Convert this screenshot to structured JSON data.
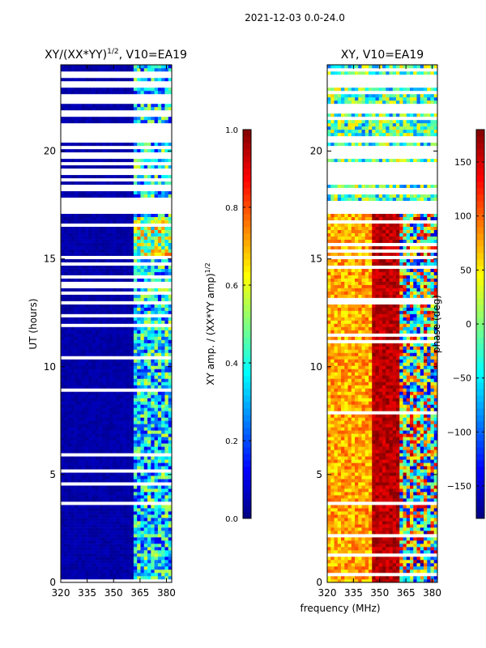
{
  "figure_title": "2021-12-03 0.0-24.0",
  "shared_xlabel": "frequency (MHz)",
  "colors": {
    "axis": "#000000",
    "background": "#ffffff",
    "flagged": "#ffffff"
  },
  "chart_data": [
    {
      "type": "heatmap",
      "title_main": "XY/(XX*YY)",
      "title_sup": "1/2",
      "title_tail": ", V10=EA19",
      "ylabel": "UT (hours)",
      "xlabel": "frequency (MHz)",
      "xlim": [
        320,
        383
      ],
      "ylim": [
        0,
        24
      ],
      "xticks": [
        320,
        335,
        350,
        365,
        380
      ],
      "yticks": [
        0,
        5,
        10,
        15,
        20
      ],
      "colormap": "jet",
      "colorbar": {
        "label": "XY amp. / (XX*YY amp)",
        "label_sup": "1/2",
        "range": [
          0.0,
          1.0
        ],
        "ticks": [
          "0.0",
          "0.2",
          "0.4",
          "0.6",
          "0.8",
          "1.0"
        ],
        "tick_values": [
          0.0,
          0.2,
          0.4,
          0.6,
          0.8,
          1.0
        ]
      },
      "description": "Mostly ~0 below 362 MHz, 0.3-0.7 between 362-383 MHz; many white flagged time rows"
    },
    {
      "type": "heatmap",
      "title": "XY, V10=EA19",
      "xlabel": "frequency (MHz)",
      "xlim": [
        320,
        383
      ],
      "ylim": [
        0,
        24
      ],
      "xticks": [
        320,
        335,
        350,
        365,
        380
      ],
      "yticks": [
        0,
        5,
        10,
        15,
        20
      ],
      "colormap": "jet",
      "colorbar": {
        "label": "phase (deg)",
        "range": [
          -180,
          180
        ],
        "ticks": [
          "−150",
          "−100",
          "−50",
          "0",
          "50",
          "100",
          "150"
        ],
        "tick_values": [
          -150,
          -100,
          -50,
          0,
          50,
          100,
          150
        ]
      },
      "description": "Phase ~50-100 deg at 320-345 MHz, ~150-180 deg at 350-360 MHz, noisy above 362 MHz"
    }
  ]
}
